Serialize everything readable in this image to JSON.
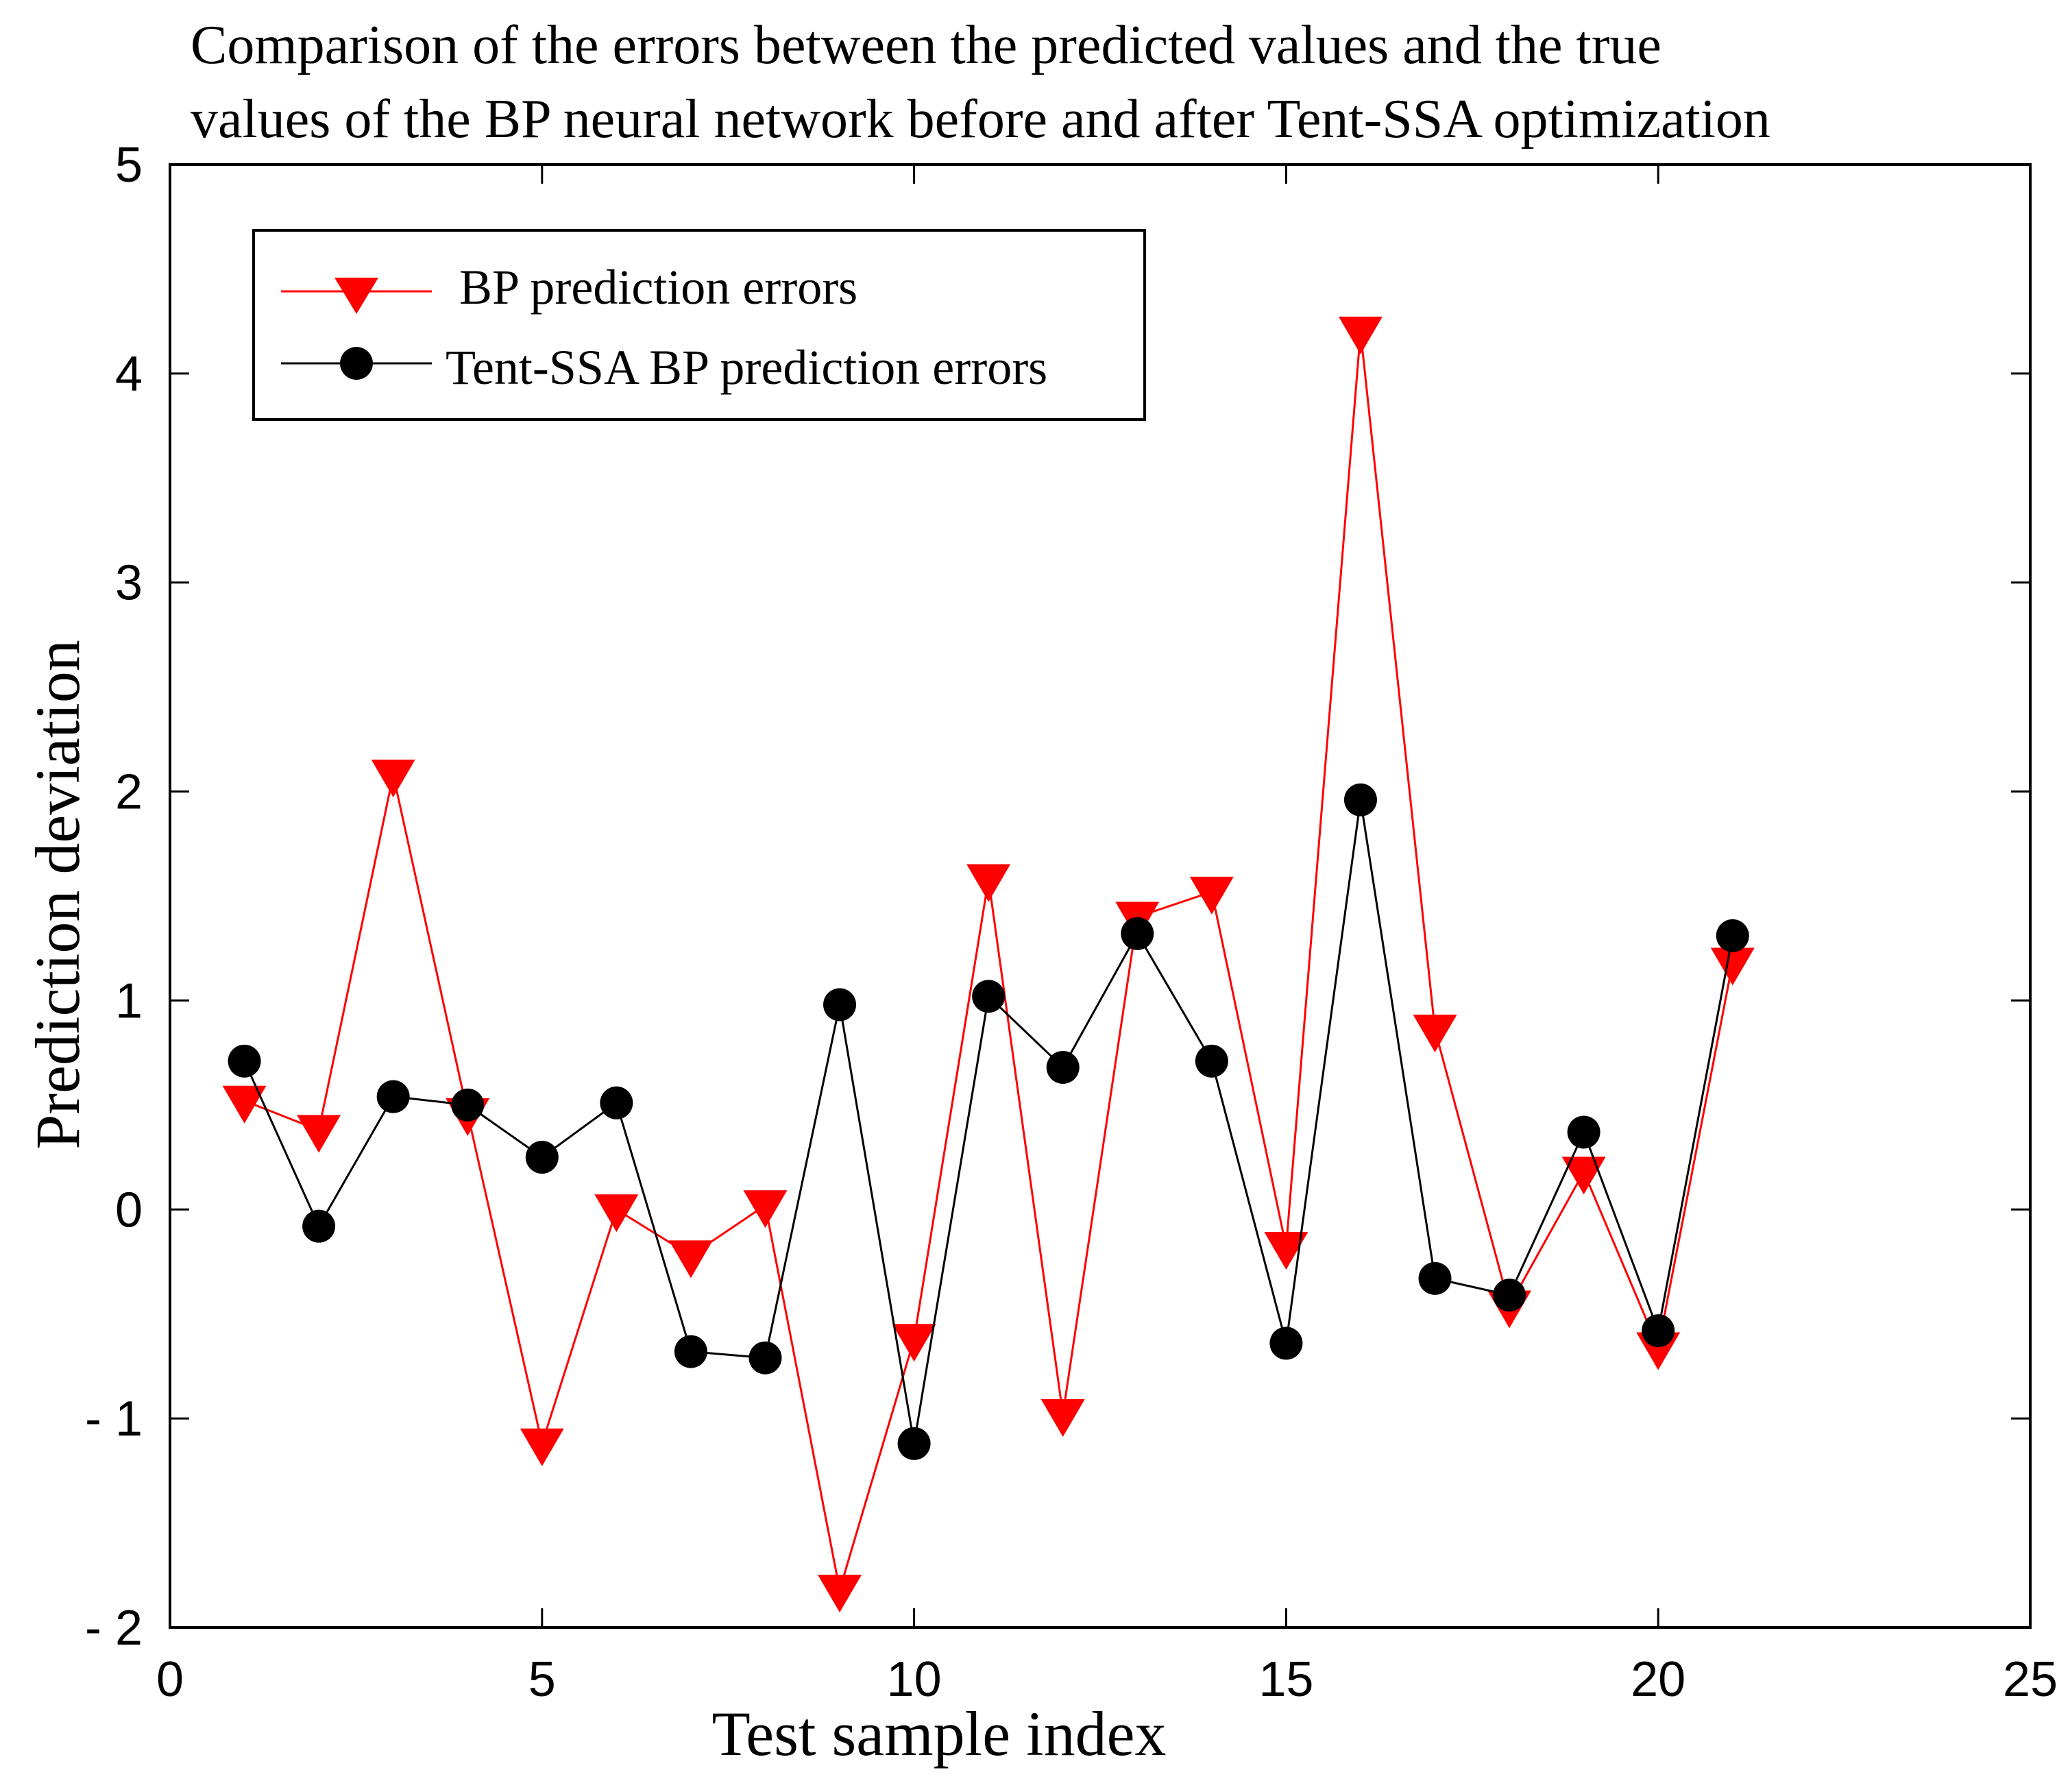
{
  "chart_data": {
    "type": "line",
    "title": [
      "Comparison of the errors between the predicted values and the true",
      "values of the BP neural network before and after Tent-SSA optimization"
    ],
    "xlabel": "Test sample index",
    "ylabel": "Prediction deviation",
    "xlim": [
      0,
      25
    ],
    "ylim": [
      -2,
      5
    ],
    "xticks": [
      0,
      5,
      10,
      15,
      20,
      25
    ],
    "yticks": [
      -2,
      -1,
      0,
      1,
      2,
      3,
      4,
      5
    ],
    "ytick_labels": [
      "- 2",
      "- 1",
      "0",
      "1",
      "2",
      "3",
      "4",
      "5"
    ],
    "grid": false,
    "legend_position": "top-left",
    "x": [
      1,
      2,
      3,
      4,
      5,
      6,
      7,
      8,
      9,
      10,
      11,
      12,
      13,
      14,
      15,
      16,
      17,
      18,
      19,
      20,
      21
    ],
    "series": [
      {
        "name": "BP prediction errors",
        "color": "#ff0000",
        "marker": "triangle-down",
        "values": [
          0.52,
          0.38,
          2.08,
          0.46,
          -1.12,
          0.0,
          -0.22,
          0.02,
          -1.82,
          -0.62,
          1.58,
          -0.98,
          1.4,
          1.52,
          -0.18,
          4.2,
          0.86,
          -0.46,
          0.18,
          -0.66,
          1.18
        ]
      },
      {
        "name": "Tent-SSA BP prediction errors",
        "color": "#000000",
        "marker": "circle",
        "values": [
          0.71,
          -0.08,
          0.54,
          0.5,
          0.25,
          0.51,
          -0.68,
          -0.71,
          0.98,
          -1.12,
          1.02,
          0.68,
          1.32,
          0.71,
          -0.64,
          1.96,
          -0.33,
          -0.41,
          0.37,
          -0.58,
          1.31
        ]
      }
    ]
  }
}
